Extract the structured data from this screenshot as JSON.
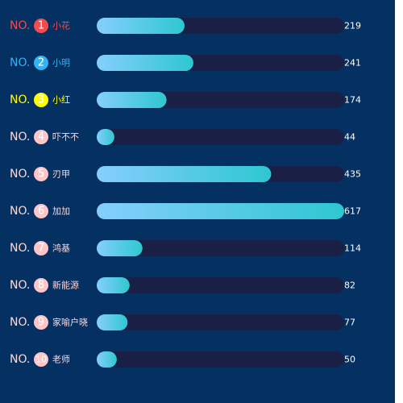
{
  "chart_data": {
    "type": "bar",
    "orientation": "horizontal",
    "rank_prefix": "NO.",
    "categories": [
      "小花",
      "小明",
      "小红",
      "吓不不",
      "刃甲",
      "加加",
      "鸿基",
      "新能源",
      "家喻户晓",
      "老师"
    ],
    "ranks": [
      "1",
      "2",
      "3",
      "4",
      "5",
      "6",
      "7",
      "8",
      "9",
      "10"
    ],
    "values": [
      219,
      241,
      174,
      44,
      435,
      617,
      114,
      82,
      77,
      50
    ],
    "xlim": [
      0,
      617
    ],
    "legend": "none",
    "grid": false
  },
  "colors": {
    "background": "#043062",
    "track": "#1a1f45",
    "bar_gradient_start": "#86cefd",
    "bar_gradient_end": "#2ec7d1",
    "value_text": "#ffffff",
    "rank_styles": [
      {
        "text": "#f64b4e",
        "badge": "#f64b4e",
        "badge_text": "#ffffff"
      },
      {
        "text": "#33b3f4",
        "badge": "#33b3f4",
        "badge_text": "#ffffff"
      },
      {
        "text": "#fffd00",
        "badge": "#fffd00",
        "badge_text": "#ffffff"
      },
      {
        "text": "#f8d7da",
        "badge": "#ffc5c7",
        "badge_text": "#ffffff"
      }
    ]
  }
}
